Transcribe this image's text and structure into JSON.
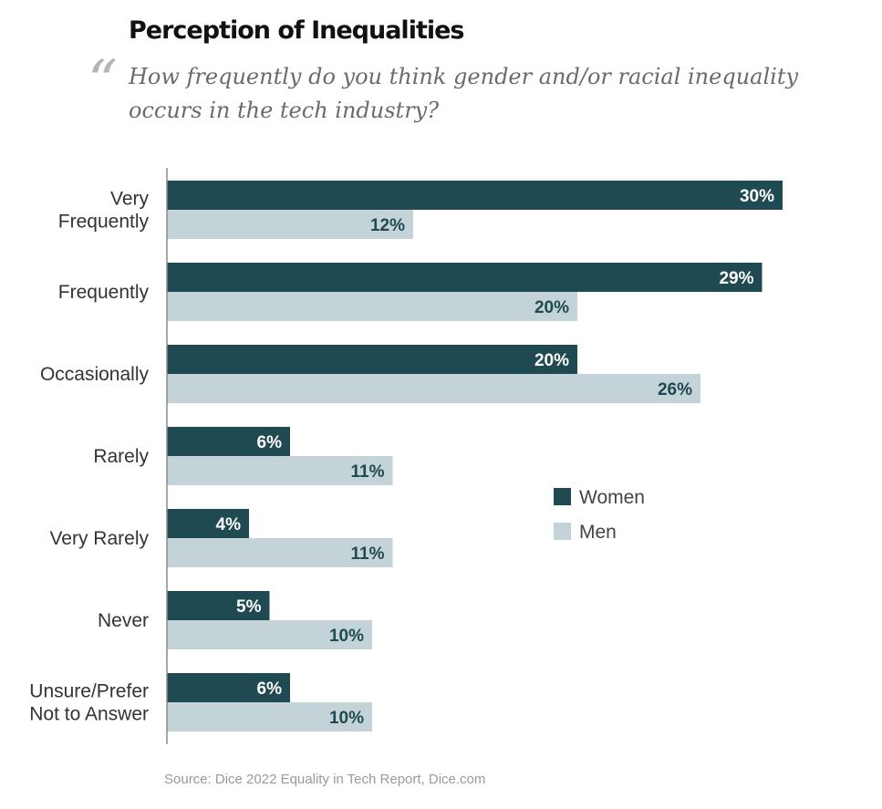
{
  "title": "Perception of Inequalities",
  "quote_mark": "“",
  "question": "How frequently do you think gender and/or racial inequality occurs in the tech industry?",
  "source": "Source: Dice 2022 Equality in Tech Report, Dice.com",
  "colors": {
    "women": "#1f4a52",
    "men": "#c3d3d7",
    "axis": "#8a8a8a",
    "category_text": "#333333",
    "legend_text": "#444444"
  },
  "chart_data": {
    "type": "bar",
    "orientation": "horizontal",
    "categories": [
      [
        "Very",
        "Frequently"
      ],
      [
        "Frequently"
      ],
      [
        "Occasionally"
      ],
      [
        "Rarely"
      ],
      [
        "Very Rarely"
      ],
      [
        "Never"
      ],
      [
        "Unsure/Prefer",
        "Not to Answer"
      ]
    ],
    "series": [
      {
        "name": "Women",
        "values": [
          30,
          29,
          20,
          6,
          4,
          5,
          6
        ],
        "labels": [
          "30%",
          "29%",
          "20%",
          "6%",
          "4%",
          "5%",
          "6%"
        ]
      },
      {
        "name": "Men",
        "values": [
          12,
          20,
          26,
          11,
          11,
          10,
          10
        ],
        "labels": [
          "12%",
          "20%",
          "26%",
          "11%",
          "11%",
          "10%",
          "10%"
        ]
      }
    ],
    "unit": "%",
    "xlim": [
      0,
      30
    ],
    "grid": false,
    "legend_position": "right"
  }
}
